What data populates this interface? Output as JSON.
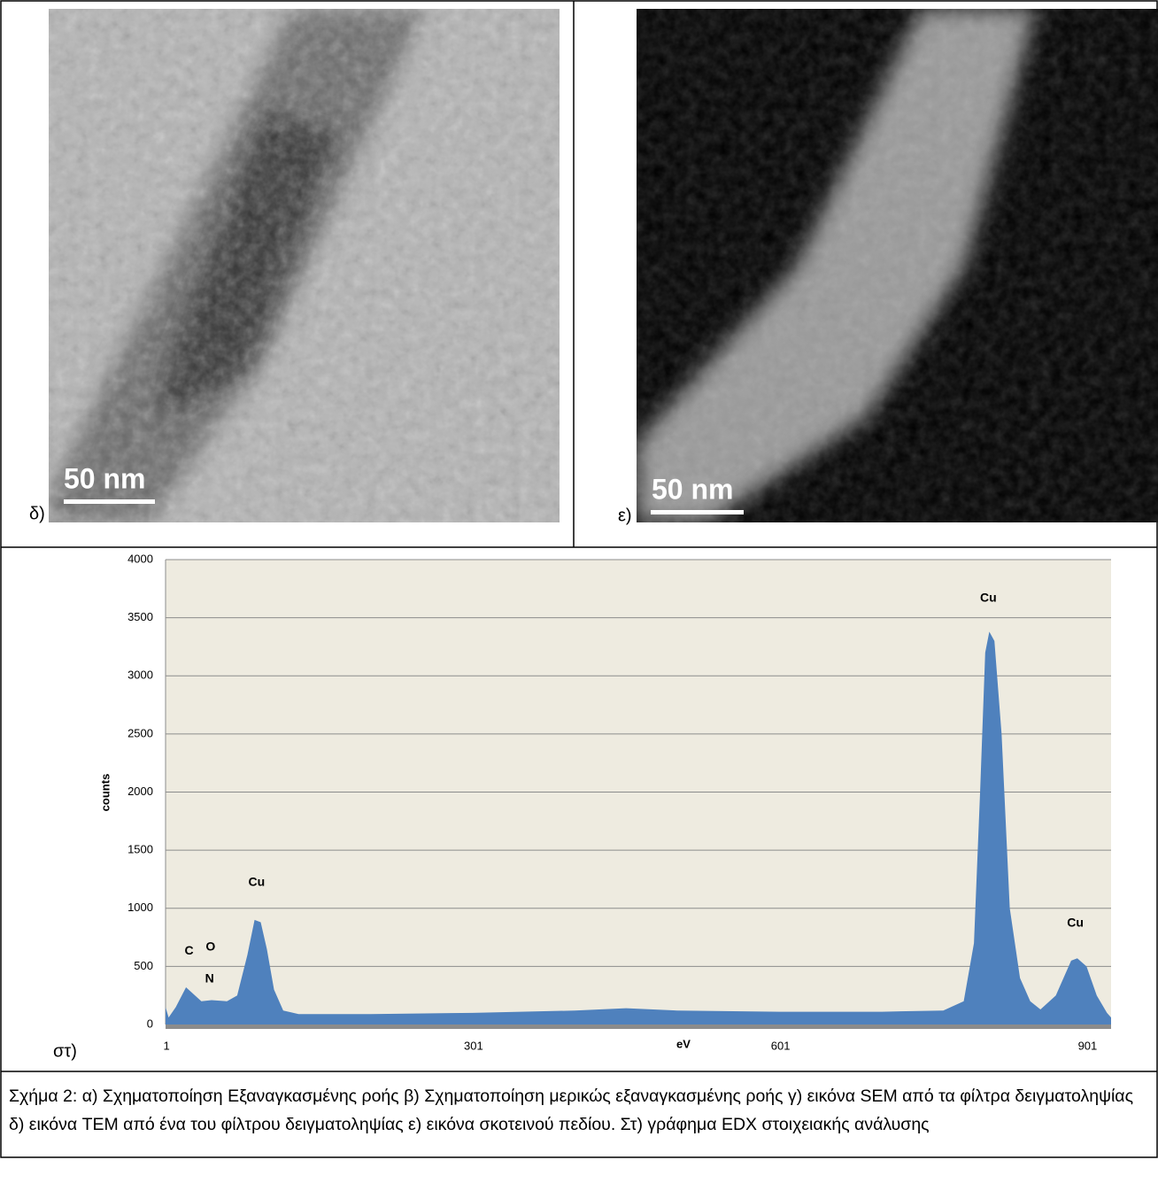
{
  "panels": [
    {
      "label": "δ)",
      "scale_bar": "50 nm"
    },
    {
      "label": "ε)",
      "scale_bar": "50 nm"
    }
  ],
  "chart_data": {
    "type": "area",
    "panel_label": "στ)",
    "x_label": "eV",
    "y_label": "counts",
    "color": "#4f81bd",
    "grid": true,
    "xlim": [
      0,
      924
    ],
    "ylim": [
      0,
      4000
    ],
    "xticks": [
      1,
      301,
      601,
      901
    ],
    "yticks": [
      0,
      500,
      1000,
      1500,
      2000,
      2500,
      3000,
      3500,
      4000
    ],
    "x": [
      0,
      3,
      10,
      20,
      25,
      35,
      45,
      60,
      70,
      80,
      87,
      93,
      99,
      106,
      115,
      130,
      200,
      300,
      400,
      450,
      500,
      600,
      700,
      760,
      780,
      790,
      796,
      801,
      805,
      810,
      817,
      825,
      835,
      845,
      855,
      870,
      885,
      891,
      900,
      910,
      920,
      924
    ],
    "values": [
      150,
      60,
      150,
      320,
      280,
      200,
      210,
      200,
      250,
      600,
      900,
      880,
      650,
      300,
      120,
      90,
      90,
      100,
      120,
      140,
      120,
      110,
      110,
      120,
      200,
      700,
      2000,
      3200,
      3380,
      3300,
      2500,
      1000,
      400,
      200,
      130,
      250,
      550,
      570,
      500,
      250,
      100,
      60
    ],
    "annotations": [
      {
        "text": "C",
        "x": 23,
        "y": 632
      },
      {
        "text": "O",
        "x": 44,
        "y": 663
      },
      {
        "text": "N",
        "x": 43,
        "y": 389
      },
      {
        "text": "Cu",
        "x": 89,
        "y": 1219
      },
      {
        "text": "Cu",
        "x": 804,
        "y": 3665
      },
      {
        "text": "Cu",
        "x": 889,
        "y": 869
      }
    ]
  },
  "caption": "Σχήμα 2: α) Σχηματοποίηση Εξαναγκασμένης ροής β) Σχηματοποίηση μερικώς εξαναγκασμένης ροής γ) εικόνα SEM από τα φίλτρα δειγματοληψίας δ) εικόνα TEM από ένα του φίλτρου δειγματοληψίας ε) εικόνα σκοτεινού πεδίου. Στ) γράφημα EDX στοιχειακής ανάλυσης"
}
